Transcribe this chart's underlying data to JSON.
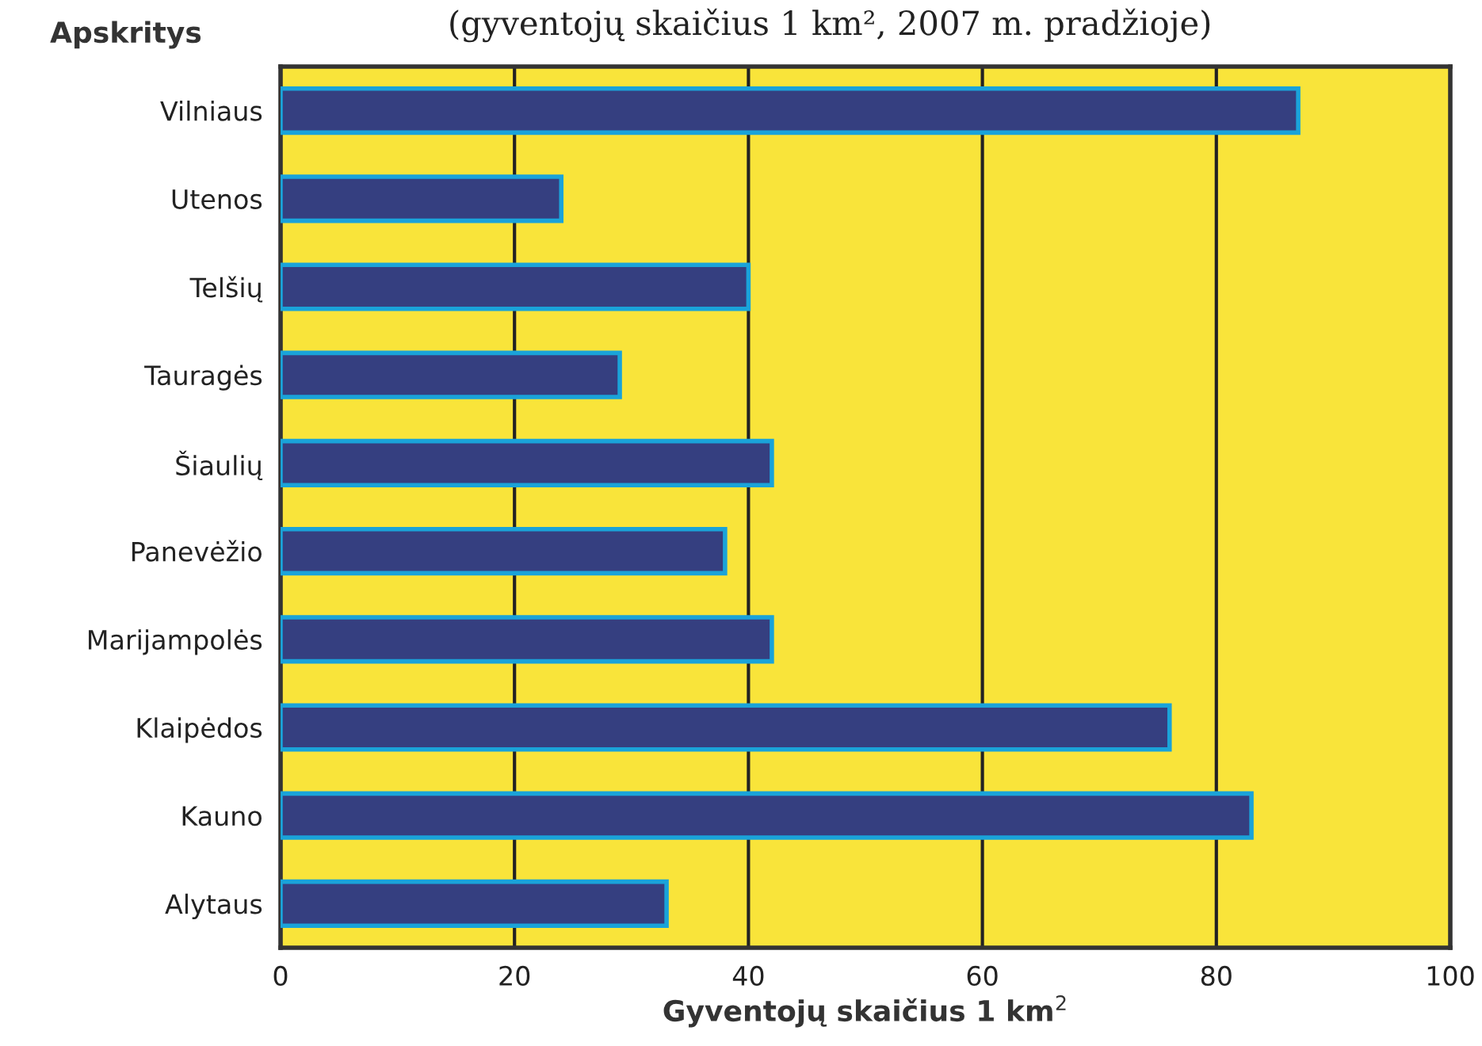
{
  "chart_data": {
    "type": "bar",
    "orientation": "horizontal",
    "title": "(gyventojų skaičius 1 km², 2007 m. pradžioje)",
    "ylabel": "Apskritys",
    "xlabel": "Gyventojų skaičius 1 km$^{2}$",
    "categories": [
      "Vilniaus",
      "Utenos",
      "Telšių",
      "Tauragės",
      "Šiaulių",
      "Panevėžio",
      "Marijampolės",
      "Klaipėdos",
      "Kauno",
      "Alytaus"
    ],
    "values": [
      87,
      24,
      40,
      29,
      42,
      38,
      42,
      76,
      83,
      33
    ],
    "color": "#353f80",
    "xlim": [
      0,
      100
    ],
    "xticks": [
      0,
      20,
      40,
      60,
      80,
      100
    ],
    "grid": "x"
  }
}
